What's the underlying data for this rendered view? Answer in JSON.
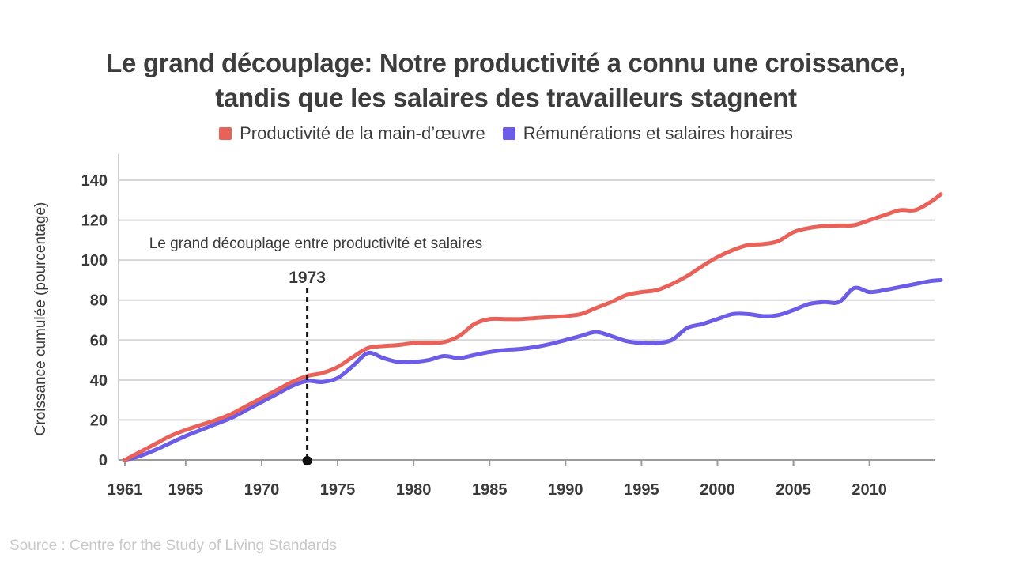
{
  "chart_data": {
    "type": "line",
    "title_lines": [
      "Le grand découplage: Notre productivité a connu une croissance,",
      "tandis que les salaires des travailleurs stagnent"
    ],
    "ylabel": "Croissance cumulée (pourcentage)",
    "xlabel": "",
    "xlim": [
      1961,
      2014.7
    ],
    "ylim": [
      0,
      150
    ],
    "x_ticks": [
      1961,
      1965,
      1970,
      1975,
      1980,
      1985,
      1990,
      1995,
      2000,
      2005,
      2010
    ],
    "y_ticks": [
      0,
      20,
      40,
      60,
      80,
      100,
      120,
      140
    ],
    "grid": "horizontal",
    "legend_position": "top-center",
    "series": [
      {
        "name": "Productivité de la main-d’œuvre",
        "color": "#e8625a",
        "x": [
          1961,
          1962,
          1963,
          1964,
          1965,
          1966,
          1967,
          1968,
          1969,
          1970,
          1971,
          1972,
          1973,
          1974,
          1975,
          1976,
          1977,
          1978,
          1979,
          1980,
          1981,
          1982,
          1983,
          1984,
          1985,
          1986,
          1987,
          1988,
          1989,
          1990,
          1991,
          1992,
          1993,
          1994,
          1995,
          1996,
          1997,
          1998,
          1999,
          2000,
          2001,
          2002,
          2003,
          2004,
          2005,
          2006,
          2007,
          2008,
          2009,
          2010,
          2011,
          2012,
          2013,
          2014,
          2014.7
        ],
        "values": [
          0,
          4,
          8,
          12,
          15,
          17.5,
          20,
          23,
          27,
          31,
          35,
          39,
          42,
          43.5,
          46.5,
          51.5,
          56,
          57,
          57.5,
          58.5,
          58.5,
          59,
          62,
          68,
          70.5,
          70.5,
          70.5,
          71,
          71.5,
          72,
          73,
          76,
          79,
          82.5,
          84,
          85,
          88,
          92,
          97,
          101.5,
          105,
          107.5,
          108,
          109.5,
          114,
          116,
          117,
          117.3,
          117.5,
          120,
          122.5,
          125,
          125,
          129,
          133
        ]
      },
      {
        "name": "Rémunérations et salaires horaires",
        "color": "#6c5ce7",
        "x": [
          1961,
          1962,
          1963,
          1964,
          1965,
          1966,
          1967,
          1968,
          1969,
          1970,
          1971,
          1972,
          1973,
          1974,
          1975,
          1976,
          1977,
          1978,
          1979,
          1980,
          1981,
          1982,
          1983,
          1984,
          1985,
          1986,
          1987,
          1988,
          1989,
          1990,
          1991,
          1992,
          1993,
          1994,
          1995,
          1996,
          1997,
          1998,
          1999,
          2000,
          2001,
          2002,
          2003,
          2004,
          2005,
          2006,
          2007,
          2008,
          2009,
          2010,
          2011,
          2012,
          2013,
          2014,
          2014.7
        ],
        "values": [
          0,
          2,
          5,
          8.5,
          12,
          15,
          18,
          21,
          25,
          29,
          33,
          37,
          39.5,
          39,
          41,
          47,
          53.5,
          51,
          49,
          49,
          50,
          52,
          51,
          52.5,
          54,
          55,
          55.5,
          56.5,
          58,
          60,
          62,
          64,
          62,
          59.5,
          58.5,
          58.5,
          60,
          66,
          68,
          70.5,
          73,
          73,
          72,
          72.5,
          75,
          78,
          79,
          79,
          86,
          84,
          85,
          86.5,
          88,
          89.5,
          90
        ]
      }
    ],
    "annotations": [
      {
        "text": "Le grand découplage entre productivité et salaires",
        "x": 1962.6,
        "y": 108
      },
      {
        "text": "1973",
        "x": 1973,
        "y": 0,
        "type": "vertical-marker"
      }
    ],
    "source": "Source : Centre for the Study of Living Standards"
  }
}
